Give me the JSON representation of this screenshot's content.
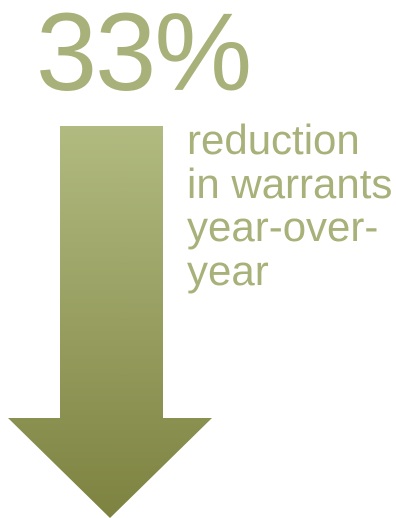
{
  "stat": {
    "value": "33%",
    "caption_lines": [
      "reduction",
      "in warrants",
      "year-over-",
      "year"
    ]
  },
  "icon": {
    "arrow": "down-arrow-icon"
  },
  "colors": {
    "text": "#a9b17a",
    "arrow_top": "#b1ba80",
    "arrow_bottom": "#7d8240"
  }
}
